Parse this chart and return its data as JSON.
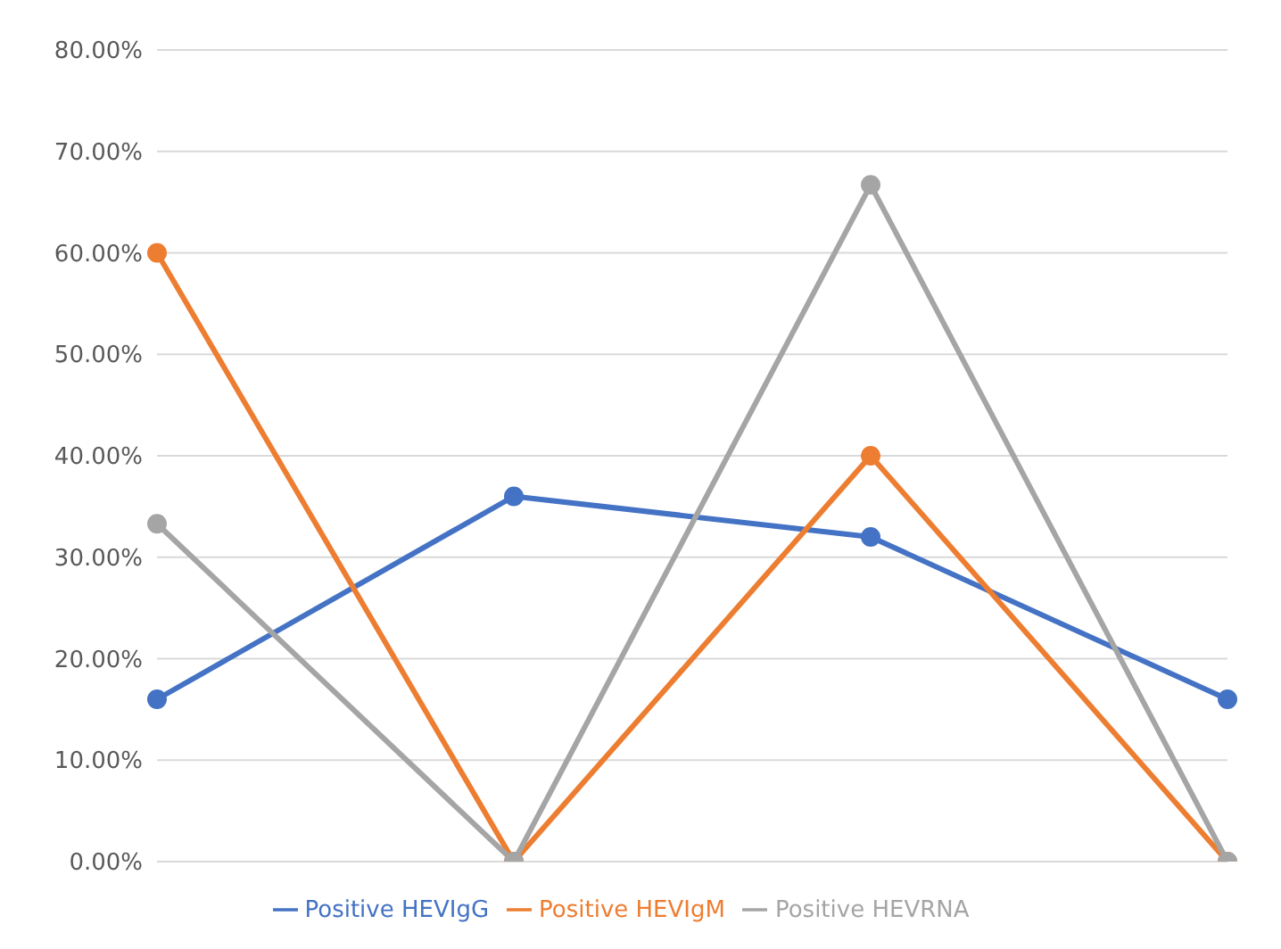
{
  "chart_data": {
    "type": "line",
    "categories": [
      null,
      null,
      null,
      null
    ],
    "series": [
      {
        "name": "Positive HEVIgG",
        "color": "#4472c4",
        "values": [
          16,
          36,
          32,
          16
        ]
      },
      {
        "name": "Positive HEVIgM",
        "color": "#ed7d31",
        "values": [
          60,
          0,
          40,
          0
        ]
      },
      {
        "name": "Positive HEVRNA",
        "color": "#a5a5a5",
        "values": [
          33.3,
          0,
          66.7,
          0
        ]
      }
    ],
    "ylim": [
      0,
      80
    ],
    "yticks": [
      {
        "value": 0,
        "label": "0.00%"
      },
      {
        "value": 10,
        "label": "10.00%"
      },
      {
        "value": 20,
        "label": "20.00%"
      },
      {
        "value": 30,
        "label": "30.00%"
      },
      {
        "value": 40,
        "label": "40.00%"
      },
      {
        "value": 50,
        "label": "50.00%"
      },
      {
        "value": 60,
        "label": "60.00%"
      },
      {
        "value": 70,
        "label": "70.00%"
      },
      {
        "value": 80,
        "label": "80.00%"
      }
    ],
    "grid": "y",
    "legend": "bottom",
    "marker": "circle",
    "line_style": "solid",
    "tick_labels": "y"
  }
}
